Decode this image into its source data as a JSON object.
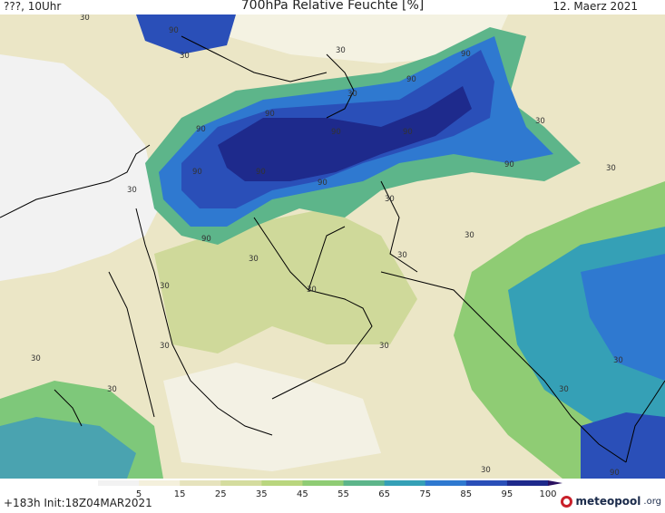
{
  "header": {
    "left": "???, 10Uhr",
    "title": "700hPa Relative Feuchte [%]",
    "date": "12. Maerz 2021"
  },
  "footer": {
    "run": "+183h  Init:18Z04MAR2021",
    "logo": "meteopool",
    "logo_suffix": ".org"
  },
  "colorbar": {
    "ticks": [
      "5",
      "15",
      "25",
      "35",
      "45",
      "55",
      "65",
      "75",
      "85",
      "95",
      "100"
    ],
    "colors": [
      "#f2f2f2",
      "#f4f0dc",
      "#e6e3bd",
      "#d4dc9e",
      "#b9d67e",
      "#8fcc74",
      "#5db58a",
      "#35a0b6",
      "#2f79d0",
      "#2a4fb8",
      "#1e2a8c",
      "#2a1060"
    ]
  },
  "contour_labels": [
    "30",
    "90"
  ],
  "colors": {
    "dry": "#f2f2f2",
    "moist": "#1e2a8c",
    "coast": "#000000"
  }
}
